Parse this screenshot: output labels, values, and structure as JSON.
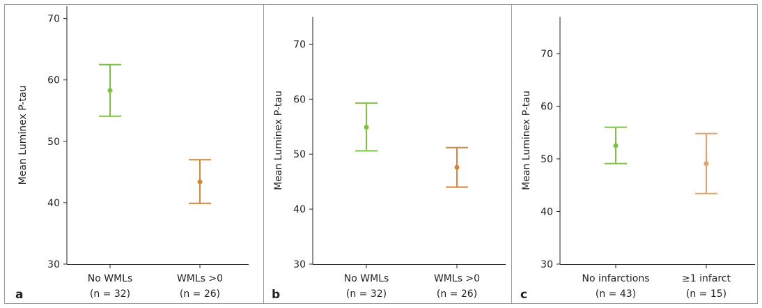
{
  "colors": {
    "frame": "#9a9a9a",
    "axis": "#222222",
    "green": "#7dc242",
    "orange": "#d4843a",
    "orange_light": "#e1a36a"
  },
  "chart_data": [
    {
      "type": "errorbar",
      "panel_label": "a",
      "ylabel": "Mean Luminex P-tau",
      "ylim": [
        30,
        72
      ],
      "yticks": [
        30,
        40,
        50,
        60,
        70
      ],
      "groups": [
        {
          "label": "No WMLs",
          "sublabel": "(n = 32)",
          "mean": 58.3,
          "lower": 54.1,
          "upper": 62.5,
          "color": "#7dc242"
        },
        {
          "label": "WMLs >0",
          "sublabel": "(n = 26)",
          "mean": 43.4,
          "lower": 39.9,
          "upper": 47.0,
          "color": "#d4843a"
        }
      ]
    },
    {
      "type": "errorbar",
      "panel_label": "b",
      "ylabel": "Mean Luminex P-tau",
      "ylim": [
        30,
        75
      ],
      "yticks": [
        30,
        40,
        50,
        60,
        70
      ],
      "groups": [
        {
          "label": "No WMLs",
          "sublabel": "(n = 32)",
          "mean": 54.9,
          "lower": 50.6,
          "upper": 59.3,
          "color": "#7dc242"
        },
        {
          "label": "WMLs >0",
          "sublabel": "(n = 26)",
          "mean": 47.6,
          "lower": 44.0,
          "upper": 51.2,
          "color": "#d4843a"
        }
      ]
    },
    {
      "type": "errorbar",
      "panel_label": "c",
      "ylabel": "Mean Luminex P-tau",
      "ylim": [
        30,
        77
      ],
      "yticks": [
        30,
        40,
        50,
        60,
        70
      ],
      "groups": [
        {
          "label": "No infarctions",
          "sublabel": "(n = 43)",
          "mean": 52.5,
          "lower": 49.1,
          "upper": 56.0,
          "color": "#7dc242"
        },
        {
          "label": "≥1 infarct",
          "sublabel": "(n = 15)",
          "mean": 49.1,
          "lower": 43.4,
          "upper": 54.8,
          "color": "#e1a36a"
        }
      ]
    }
  ]
}
